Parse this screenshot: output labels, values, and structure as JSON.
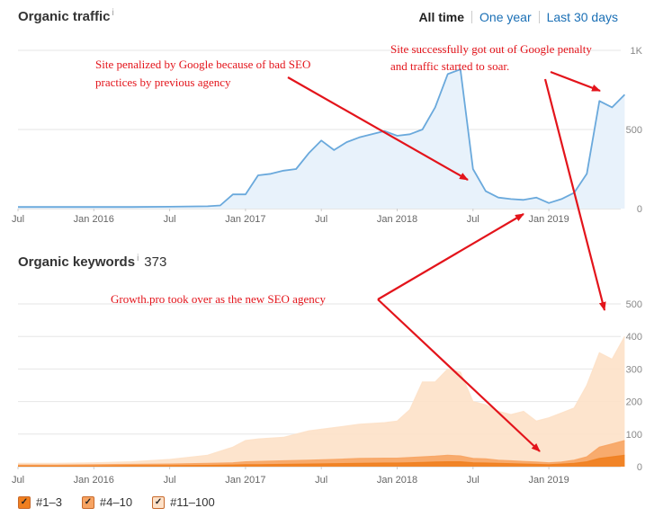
{
  "traffic": {
    "title": "Organic traffic",
    "info": "i",
    "tabs": [
      "All time",
      "One year",
      "Last 30 days"
    ],
    "active_tab": "All time"
  },
  "keywords": {
    "title": "Organic keywords",
    "info": "i",
    "count": "373"
  },
  "legend": [
    {
      "label": "#1–3",
      "checked": true,
      "color": "#f07f1f"
    },
    {
      "label": "#4–10",
      "checked": true,
      "color": "#f7a463"
    },
    {
      "label": "#11–100",
      "checked": true,
      "color": "#fde1c8"
    }
  ],
  "annotations": [
    {
      "text": [
        "Site penalized by Google because of bad SEO",
        "practices by previous agency"
      ]
    },
    {
      "text": [
        "Site successfully got out of Google penalty",
        "and traffic started to soar."
      ]
    },
    {
      "text": [
        "Growth.pro took over as the new SEO agency"
      ]
    }
  ],
  "colors": {
    "traffic_line": "#6aa9dc",
    "traffic_fill": "#e8f2fb",
    "arrow": "#e3141b",
    "grid": "#e6e6e6"
  },
  "chart_data": [
    {
      "type": "area",
      "title": "Organic traffic",
      "x_ticks": [
        "Jul",
        "Jan 2016",
        "Jul",
        "Jan 2017",
        "Jul",
        "Jan 2018",
        "Jul",
        "Jan 2019"
      ],
      "y_ticks": [
        "0",
        "500",
        "1K"
      ],
      "ylim": [
        0,
        1000
      ],
      "grid": true,
      "series": [
        {
          "x": [
            "2015-07",
            "2015-10",
            "2016-01",
            "2016-04",
            "2016-07",
            "2016-10",
            "2016-11",
            "2016-12",
            "2017-01",
            "2017-02",
            "2017-03",
            "2017-04",
            "2017-05",
            "2017-06",
            "2017-07",
            "2017-08",
            "2017-09",
            "2017-10",
            "2017-11",
            "2017-12",
            "2018-01",
            "2018-02",
            "2018-03",
            "2018-04",
            "2018-05",
            "2018-06",
            "2018-07",
            "2018-08",
            "2018-09",
            "2018-10",
            "2018-11",
            "2018-12",
            "2019-01",
            "2019-02",
            "2019-03",
            "2019-04",
            "2019-05",
            "2019-06",
            "2019-07"
          ],
          "y": [
            10,
            10,
            10,
            10,
            12,
            15,
            20,
            90,
            90,
            210,
            220,
            240,
            250,
            350,
            430,
            370,
            420,
            450,
            470,
            490,
            460,
            470,
            500,
            640,
            850,
            880,
            250,
            110,
            70,
            60,
            55,
            70,
            35,
            60,
            100,
            220,
            680,
            640,
            720
          ]
        }
      ]
    },
    {
      "type": "area",
      "title": "Organic keywords",
      "x_ticks": [
        "Jul",
        "Jan 2016",
        "Jul",
        "Jan 2017",
        "Jul",
        "Jan 2018",
        "Jul",
        "Jan 2019"
      ],
      "y_ticks": [
        "0",
        "100",
        "200",
        "300",
        "400",
        "500"
      ],
      "ylim": [
        0,
        500
      ],
      "grid": true,
      "x": [
        "2015-07",
        "2015-10",
        "2016-01",
        "2016-04",
        "2016-07",
        "2016-10",
        "2016-12",
        "2017-01",
        "2017-02",
        "2017-04",
        "2017-06",
        "2017-08",
        "2017-10",
        "2017-12",
        "2018-01",
        "2018-02",
        "2018-03",
        "2018-04",
        "2018-05",
        "2018-06",
        "2018-07",
        "2018-08",
        "2018-09",
        "2018-10",
        "2018-11",
        "2018-12",
        "2019-01",
        "2019-02",
        "2019-03",
        "2019-04",
        "2019-05",
        "2019-06",
        "2019-07"
      ],
      "series": [
        {
          "name": "#11–100",
          "values": [
            10,
            10,
            12,
            15,
            22,
            35,
            60,
            80,
            85,
            90,
            110,
            120,
            130,
            135,
            140,
            175,
            260,
            260,
            300,
            290,
            200,
            190,
            170,
            160,
            170,
            140,
            150,
            165,
            180,
            250,
            350,
            330,
            400
          ]
        },
        {
          "name": "#4–10",
          "values": [
            5,
            5,
            6,
            7,
            8,
            10,
            12,
            15,
            16,
            18,
            20,
            22,
            25,
            26,
            26,
            28,
            30,
            32,
            35,
            33,
            25,
            24,
            20,
            18,
            16,
            14,
            12,
            14,
            20,
            30,
            60,
            70,
            80
          ]
        },
        {
          "name": "#1–3",
          "values": [
            2,
            2,
            2,
            3,
            3,
            4,
            5,
            6,
            6,
            7,
            8,
            9,
            10,
            11,
            11,
            12,
            13,
            14,
            15,
            15,
            12,
            11,
            10,
            9,
            8,
            7,
            6,
            8,
            10,
            15,
            25,
            30,
            35
          ]
        }
      ]
    }
  ]
}
